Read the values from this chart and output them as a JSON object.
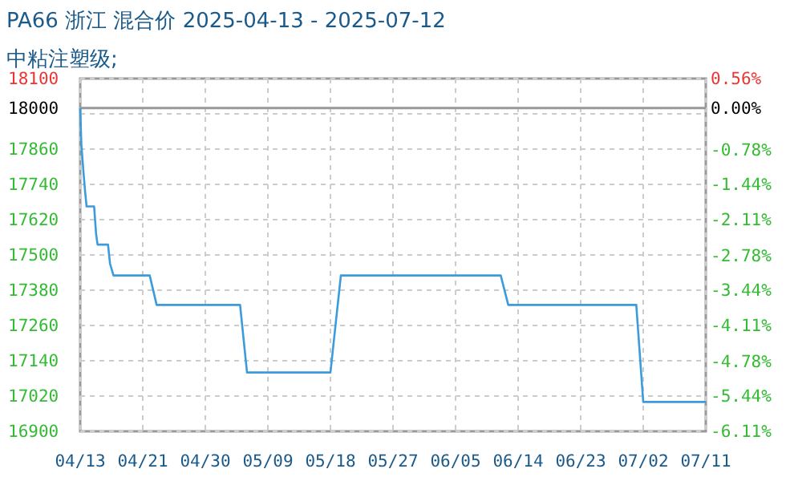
{
  "chart_data": {
    "type": "step",
    "title": "PA66 浙江 混合价 2025-04-13 - 2025-07-12",
    "subtitle": "中粘注塑级;",
    "x": [
      "2025-04-13",
      "2025-04-13T04:00",
      "2025-04-13T11:00",
      "2025-04-13T17:00",
      "2025-04-13T22:00",
      "2025-04-15",
      "2025-04-15T07:00",
      "2025-04-15T12:00",
      "2025-04-17",
      "2025-04-17T07:00",
      "2025-04-17T19:00",
      "2025-04-23",
      "2025-04-24",
      "2025-05-06",
      "2025-05-07",
      "2025-05-19",
      "2025-05-20T12:00",
      "2025-06-12T12:00",
      "2025-06-13T14:00",
      "2025-07-02",
      "2025-07-03",
      "2025-07-12"
    ],
    "series": [
      {
        "color": "#3c9bdc",
        "values": [
          18000,
          17875,
          17785,
          17715,
          17665,
          17665,
          17570,
          17535,
          17535,
          17470,
          17430,
          17430,
          17330,
          17330,
          17100,
          17100,
          17430,
          17430,
          17330,
          17330,
          17000,
          17000
        ]
      }
    ],
    "xlim": [
      "2025-04-13",
      "2025-07-12"
    ],
    "xticks": [
      {
        "value": "2025-04-13",
        "label": "04/13"
      },
      {
        "value": "2025-04-22",
        "label": "04/21"
      },
      {
        "value": "2025-05-01",
        "label": "04/30"
      },
      {
        "value": "2025-05-10",
        "label": "05/09"
      },
      {
        "value": "2025-05-19",
        "label": "05/18"
      },
      {
        "value": "2025-05-28",
        "label": "05/27"
      },
      {
        "value": "2025-06-06",
        "label": "06/05"
      },
      {
        "value": "2025-06-15",
        "label": "06/14"
      },
      {
        "value": "2025-06-24",
        "label": "06/23"
      },
      {
        "value": "2025-07-03",
        "label": "07/02"
      },
      {
        "value": "2025-07-12",
        "label": "07/11"
      }
    ],
    "ylim": [
      16900,
      18100
    ],
    "yticks": [
      16900,
      17020,
      17140,
      17260,
      17380,
      17500,
      17620,
      17740,
      17860,
      {
        "value": 17980,
        "label": null
      },
      18000,
      18100
    ],
    "y2lim": [
      -6.11,
      0.56
    ],
    "y2ticks": [
      {
        "value": -6.11,
        "label": "-6.11%"
      },
      {
        "value": -5.44,
        "label": "-5.44%"
      },
      {
        "value": -4.78,
        "label": "-4.78%"
      },
      {
        "value": -4.11,
        "label": "-4.11%"
      },
      {
        "value": -3.44,
        "label": "-3.44%"
      },
      {
        "value": -2.78,
        "label": "-2.78%"
      },
      {
        "value": -2.11,
        "label": "-2.11%"
      },
      {
        "value": -1.44,
        "label": "-1.44%"
      },
      {
        "value": -0.78,
        "label": "-0.78%"
      },
      {
        "value": 0,
        "label": "0.00%"
      },
      {
        "value": 0.56,
        "label": "0.56%"
      }
    ],
    "ref_lines": [
      {
        "axis": "y",
        "value": 18000,
        "color": "#999999"
      }
    ],
    "grid": true
  }
}
